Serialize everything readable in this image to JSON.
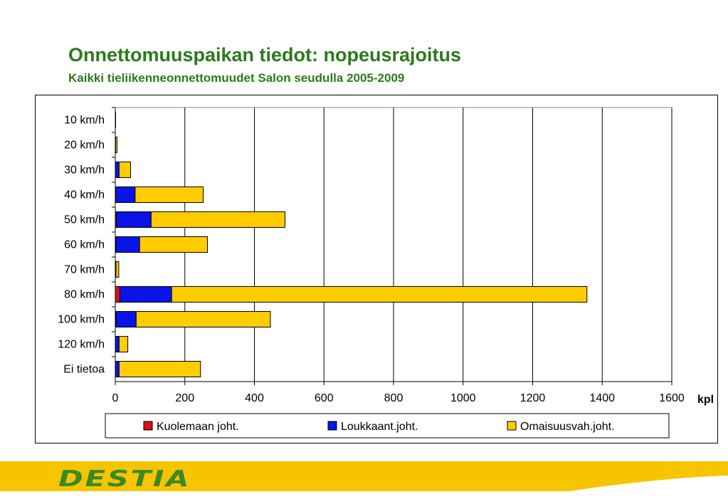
{
  "header": {
    "title": "Onnettomuuspaikan tiedot: nopeusrajoitus",
    "subtitle": "Kaikki tieliikenneonnettomuudet Salon seudulla 2005-2009"
  },
  "footer": {
    "brand": "DESTIA"
  },
  "colors": {
    "title_green": "#2b7a1c",
    "fatal": "#e01018",
    "injury": "#0a14e8",
    "property": "#ffcc00",
    "band_yellow": "#f7c400"
  },
  "chart_data": {
    "type": "bar",
    "orientation": "horizontal",
    "stacked": true,
    "categories": [
      "10 km/h",
      "20 km/h",
      "30 km/h",
      "40 km/h",
      "50 km/h",
      "60 km/h",
      "70 km/h",
      "80 km/h",
      "100 km/h",
      "120 km/h",
      "Ei tietoa"
    ],
    "series": [
      {
        "name": "Kuolemaan joht.",
        "color": "#e01018",
        "values": [
          0,
          0,
          0,
          1,
          3,
          2,
          0,
          13,
          2,
          0,
          0
        ]
      },
      {
        "name": "Loukkaant.joht.",
        "color": "#0a14e8",
        "values": [
          0,
          1,
          11,
          56,
          100,
          68,
          2,
          149,
          58,
          11,
          11
        ]
      },
      {
        "name": "Omaisuusvah.joht.",
        "color": "#ffcc00",
        "values": [
          1,
          4,
          33,
          196,
          385,
          195,
          8,
          1194,
          386,
          25,
          234
        ]
      }
    ],
    "xlabel": "kpl",
    "ylabel": "",
    "xlim": [
      0,
      1600
    ],
    "xticks": [
      "0",
      "200",
      "400",
      "600",
      "800",
      "1000",
      "1200",
      "1400",
      "1600"
    ],
    "grid": "vertical",
    "legend": "bottom"
  }
}
